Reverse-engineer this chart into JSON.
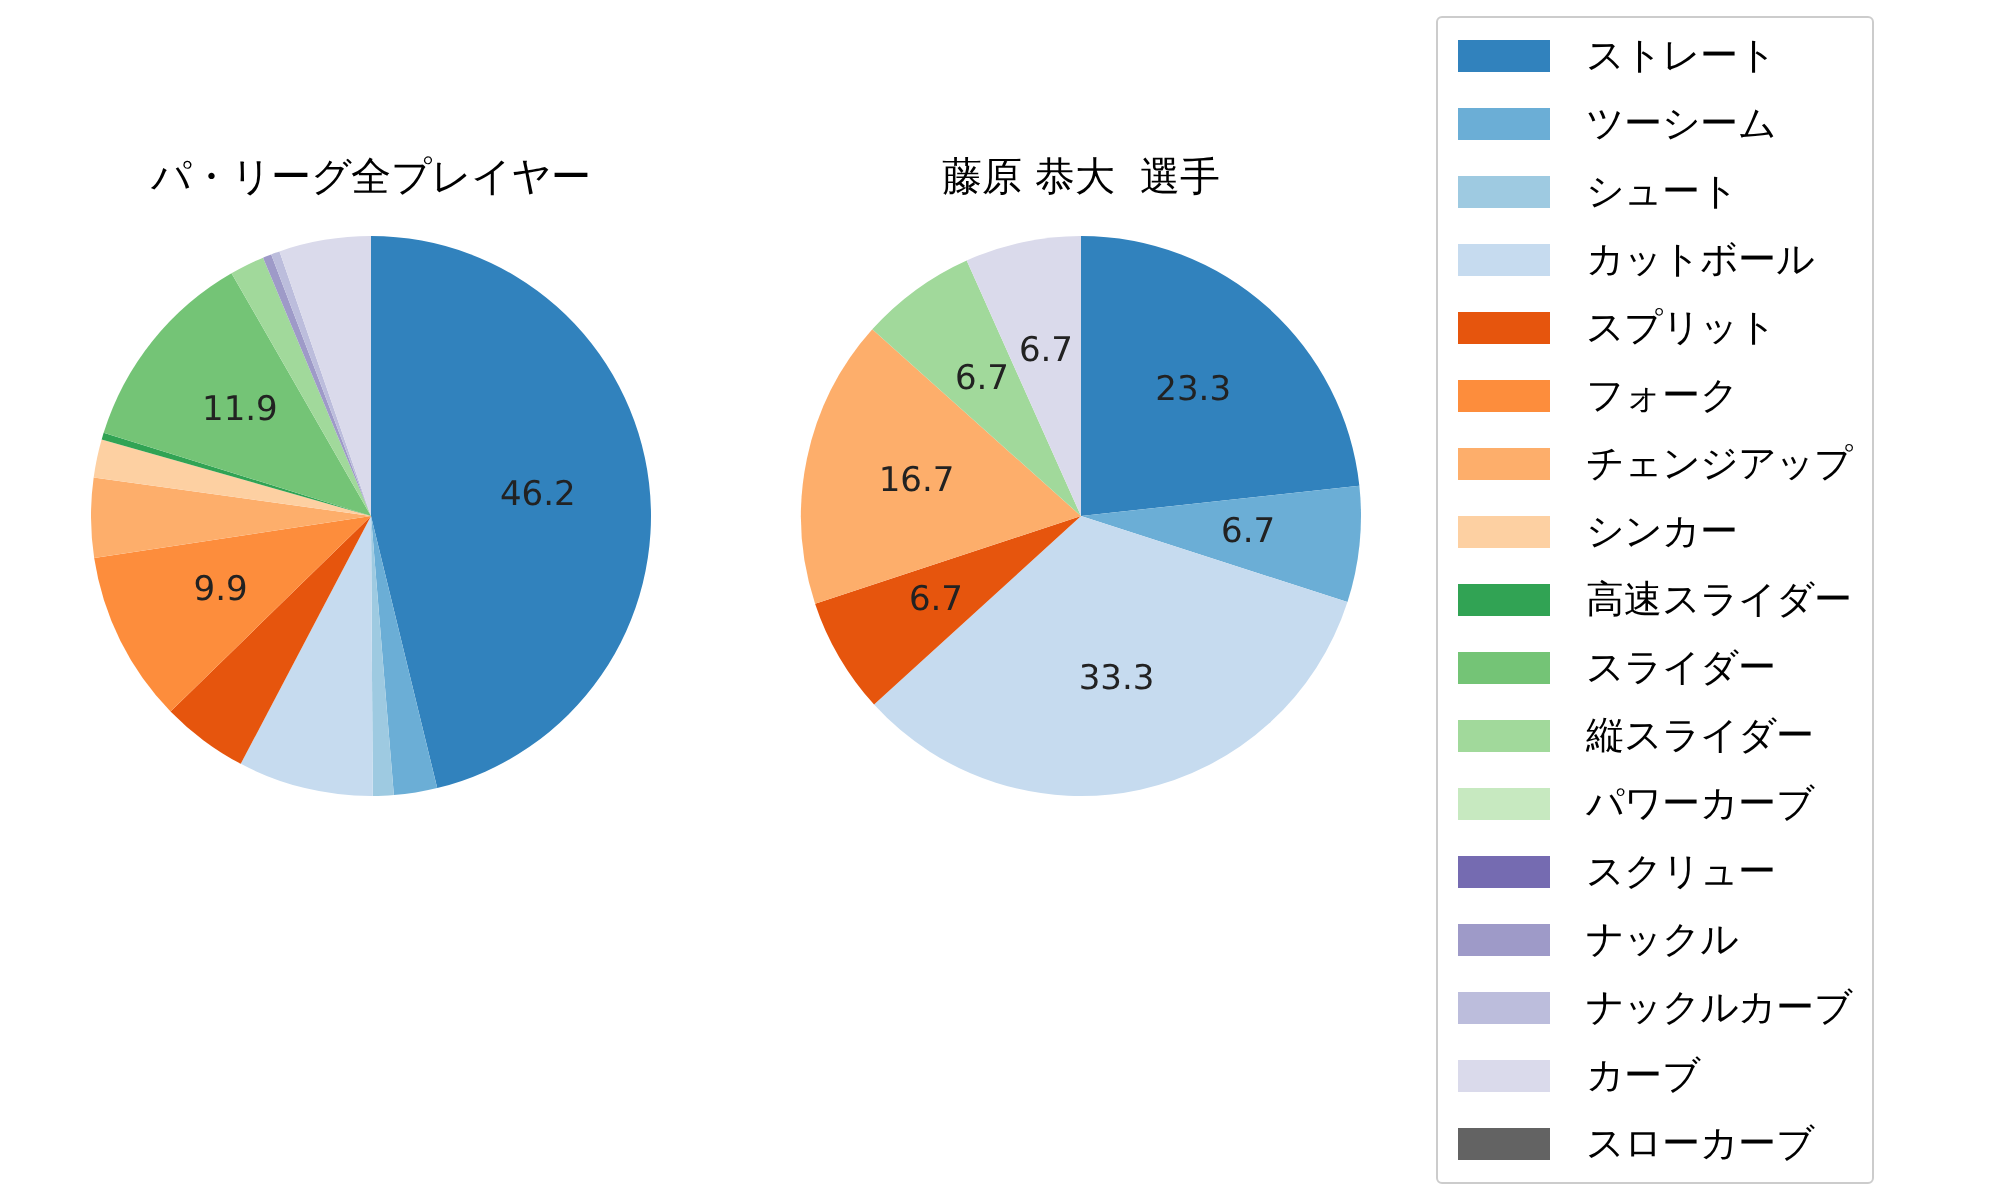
{
  "chart_data": [
    {
      "type": "pie",
      "title": "パ・リーグ全プレイヤー",
      "categories": [
        null,
        null,
        null,
        null,
        null,
        null,
        null,
        null,
        null,
        null,
        null,
        null,
        null,
        null,
        null,
        null,
        null
      ],
      "values": [
        46.2,
        2.5,
        1.2,
        7.8,
        5.0,
        9.9,
        4.6,
        2.2,
        0.4,
        11.9,
        2.0,
        0,
        0,
        0.5,
        0.5,
        5.3,
        0
      ],
      "colors": [
        "#3182bd",
        "#6baed6",
        "#9ecae1",
        "#c6dbef",
        "#e6550d",
        "#fd8d3c",
        "#fdae6b",
        "#fdd0a2",
        "#31a354",
        "#74c476",
        "#a1d99b",
        "#c7e9c0",
        "#756bb1",
        "#9e9ac8",
        "#bcbddc",
        "#dadaeb",
        "#636363"
      ],
      "value_labels": [
        "46.2",
        null,
        null,
        null,
        null,
        "9.9",
        null,
        null,
        null,
        "11.9",
        null,
        null,
        null,
        null,
        null,
        null,
        null
      ],
      "legend": false
    },
    {
      "type": "pie",
      "title": "藤原 恭大  選手",
      "categories": [
        "ストレート",
        "ツーシーム",
        "シュート",
        "カットボール",
        "スプリット",
        "フォーク",
        "チェンジアップ",
        "シンカー",
        "高速スライダー",
        "スライダー",
        "縦スライダー",
        "パワーカーブ",
        "スクリュー",
        "ナックル",
        "ナックルカーブ",
        "カーブ",
        "スローカーブ"
      ],
      "values": [
        23.3,
        6.7,
        0,
        33.3,
        6.7,
        0,
        16.7,
        0,
        0,
        0,
        6.7,
        0,
        0,
        0,
        0,
        6.7,
        0
      ],
      "colors": [
        "#3182bd",
        "#6baed6",
        "#9ecae1",
        "#c6dbef",
        "#e6550d",
        "#fd8d3c",
        "#fdae6b",
        "#fdd0a2",
        "#31a354",
        "#74c476",
        "#a1d99b",
        "#c7e9c0",
        "#756bb1",
        "#9e9ac8",
        "#bcbddc",
        "#dadaeb",
        "#636363"
      ],
      "value_labels": [
        "23.3",
        "6.7",
        null,
        "33.3",
        "6.7",
        null,
        "16.7",
        null,
        null,
        null,
        "6.7",
        null,
        null,
        null,
        null,
        "6.7",
        null
      ],
      "legend": "right"
    }
  ]
}
